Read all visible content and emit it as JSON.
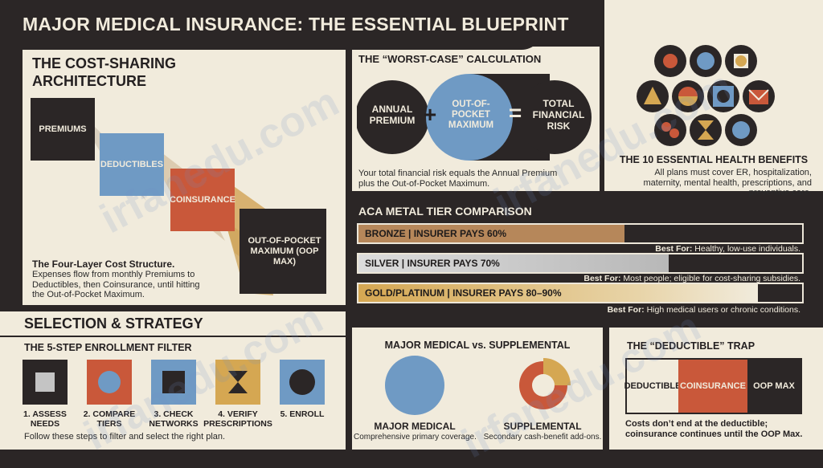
{
  "title": "MAJOR MEDICAL INSURANCE: THE ESSENTIAL BLUEPRINT",
  "watermark": "irfanedu.com",
  "colors": {
    "cream": "#f1ebdc",
    "dark": "#2b2626",
    "blue": "#6f9ac4",
    "orange": "#c9583a",
    "gold": "#d5a752",
    "bronze": "#b6875a",
    "silver": "#c4c4c4"
  },
  "cost_sharing": {
    "heading": "THE COST-SHARING ARCHITECTURE",
    "layers": [
      "PREMIUMS",
      "DEDUCTIBLES",
      "COINSURANCE",
      "OUT-OF-POCKET MAXIMUM (OOP MAX)"
    ],
    "caption_title": "The Four-Layer Cost Structure.",
    "caption_text": "Expenses flow from monthly Premiums to Deductibles, then Coinsurance, until hitting the Out-of-Pocket Maximum."
  },
  "worst_case": {
    "heading": "THE “WORST-CASE” CALCULATION",
    "circle1": "ANNUAL PREMIUM",
    "plus": "+",
    "circle2": "OUT-OF-POCKET MAXIMUM",
    "equals": "=",
    "circle3": "TOTAL FINANCIAL RISK",
    "caption": "Your total financial risk equals the Annual Premium plus the Out-of-Pocket Maximum."
  },
  "ehb": {
    "heading": "THE 10 ESSENTIAL HEALTH BENEFITS",
    "text": "All plans must cover ER, hospitalization, maternity, mental health, prescriptions, and preventive care."
  },
  "metal": {
    "heading": "ACA METAL TIER COMPARISON",
    "tiers": [
      {
        "label": "BRONZE | INSURER PAYS 60%",
        "pct": 60,
        "best_label": "Best For:",
        "best": "Healthy, low-use individuals."
      },
      {
        "label": "SILVER | INSURER PAYS 70%",
        "pct": 70,
        "best_label": "Best For:",
        "best": "Most people; eligible for cost-sharing subsidies."
      },
      {
        "label": "GOLD/PLATINUM | INSURER PAYS 80–90%",
        "pct": 85,
        "best_label": "Best For:",
        "best": "High medical users or chronic conditions."
      }
    ]
  },
  "selection": {
    "heading": "SELECTION & STRATEGY",
    "subheading": "THE 5-STEP ENROLLMENT FILTER",
    "steps": [
      "1. ASSESS NEEDS",
      "2. COMPARE TIERS",
      "3. CHECK NETWORKS",
      "4. VERIFY PRESCRIPTIONS",
      "5. ENROLL"
    ],
    "caption": "Follow these steps to filter and select the right plan."
  },
  "vs": {
    "heading": "MAJOR MEDICAL vs. SUPPLEMENTAL",
    "left_title": "MAJOR MEDICAL",
    "left_text": "Comprehensive primary coverage.",
    "right_title": "SUPPLEMENTAL",
    "right_text": "Secondary cash-benefit add-ons."
  },
  "trap": {
    "heading": "THE “DEDUCTIBLE” TRAP",
    "segments": [
      "DEDUCTIBLE",
      "COINSURANCE",
      "OOP MAX"
    ],
    "caption": "Costs don’t end at the deductible; coinsurance continues until the OOP Max."
  }
}
